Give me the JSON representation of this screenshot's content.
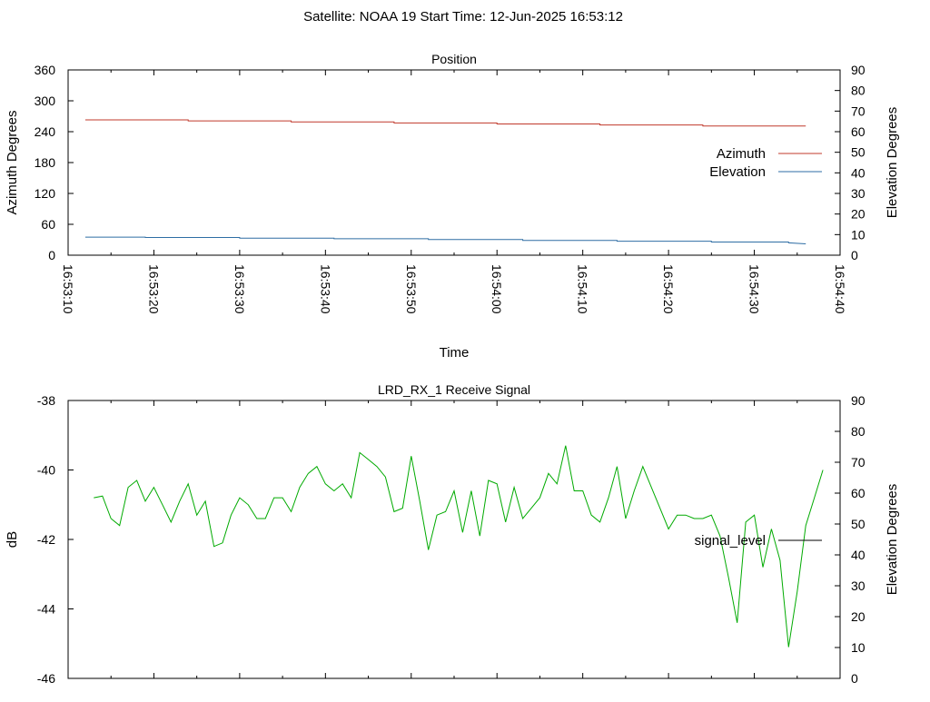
{
  "header": {
    "title": "Satellite: NOAA 19    Start Time: 12-Jun-2025 16:53:12"
  },
  "chart_data": [
    {
      "type": "line",
      "title": "Position",
      "xlabel": "Time",
      "ylabel": "Azimuth Degrees",
      "y2label": "Elevation Degrees",
      "xlim_seconds": [
        0,
        90
      ],
      "x_tick_labels": [
        "16:53:10",
        "16:53:20",
        "16:53:30",
        "16:53:40",
        "16:53:50",
        "16:54:00",
        "16:54:10",
        "16:54:20",
        "16:54:30",
        "16:54:40"
      ],
      "ylim": [
        0,
        360
      ],
      "yticks": [
        0,
        60,
        120,
        180,
        240,
        300,
        360
      ],
      "y2lim": [
        0,
        90
      ],
      "y2ticks": [
        0,
        10,
        20,
        30,
        40,
        50,
        60,
        70,
        80,
        90
      ],
      "legend_position": "right",
      "series": [
        {
          "name": "Azimuth",
          "axis": "left",
          "color": "#c0392b",
          "x": [
            2,
            14,
            14,
            26,
            26,
            38,
            38,
            50,
            50,
            62,
            62,
            74,
            74,
            86,
            86
          ],
          "values": [
            263,
            263,
            261,
            261,
            259,
            259,
            257,
            257,
            255,
            255,
            253,
            253,
            251,
            251,
            251
          ]
        },
        {
          "name": "Elevation",
          "axis": "right",
          "color": "#2e6da4",
          "x": [
            2,
            9,
            9,
            20,
            20,
            31,
            31,
            42,
            42,
            53,
            53,
            64,
            64,
            75,
            75,
            84,
            84,
            86
          ],
          "values": [
            8.8,
            8.8,
            8.6,
            8.6,
            8.3,
            8.3,
            8.0,
            8.0,
            7.6,
            7.6,
            7.2,
            7.2,
            6.8,
            6.8,
            6.4,
            6.4,
            6.0,
            5.5
          ]
        }
      ]
    },
    {
      "type": "line",
      "title": "LRD_RX_1 Receive Signal",
      "ylabel": "dB",
      "y2label": "Elevation Degrees",
      "xlim_seconds": [
        0,
        90
      ],
      "ylim": [
        -46,
        -38
      ],
      "yticks": [
        -46,
        -44,
        -42,
        -40,
        -38
      ],
      "y2lim": [
        0,
        90
      ],
      "y2ticks": [
        0,
        10,
        20,
        30,
        40,
        50,
        60,
        70,
        80,
        90
      ],
      "legend_position": "right",
      "series": [
        {
          "name": "signal_level",
          "axis": "left",
          "color": "#00aa00",
          "x": [
            3.0,
            4.0,
            5.0,
            6.0,
            7.0,
            8.0,
            9.0,
            10.0,
            11.0,
            12.0,
            13.0,
            14.0,
            15.0,
            16.0,
            17.0,
            18.0,
            19.0,
            20.0,
            21.0,
            22.0,
            23.0,
            24.0,
            25.0,
            26.0,
            27.0,
            28.0,
            29.0,
            30.0,
            31.0,
            32.0,
            33.0,
            34.0,
            35.0,
            36.0,
            37.0,
            38.0,
            39.0,
            40.0,
            41.0,
            42.0,
            43.0,
            44.0,
            45.0,
            46.0,
            47.0,
            48.0,
            49.0,
            50.0,
            51.0,
            52.0,
            53.0,
            54.0,
            55.0,
            56.0,
            57.0,
            58.0,
            59.0,
            60.0,
            61.0,
            62.0,
            63.0,
            64.0,
            65.0,
            66.0,
            67.0,
            68.0,
            69.0,
            70.0,
            71.0,
            72.0,
            73.0,
            74.0,
            75.0,
            76.0,
            77.0,
            78.0,
            79.0,
            80.0,
            81.0,
            82.0,
            83.0,
            84.0,
            85.0,
            86.0,
            87.0,
            88.0
          ],
          "values": [
            -40.8,
            -40.75,
            -41.4,
            -41.6,
            -40.5,
            -40.3,
            -40.9,
            -40.5,
            -41.0,
            -41.5,
            -40.9,
            -40.4,
            -41.3,
            -40.9,
            -42.2,
            -42.1,
            -41.3,
            -40.8,
            -41.0,
            -41.4,
            -41.4,
            -40.8,
            -40.8,
            -41.2,
            -40.5,
            -40.1,
            -39.9,
            -40.4,
            -40.6,
            -40.4,
            -40.8,
            -39.5,
            -39.7,
            -39.9,
            -40.2,
            -41.2,
            -41.1,
            -39.6,
            -40.9,
            -42.3,
            -41.3,
            -41.2,
            -40.6,
            -41.8,
            -40.6,
            -41.9,
            -40.3,
            -40.4,
            -41.5,
            -40.5,
            -41.4,
            -41.1,
            -40.8,
            -40.1,
            -40.4,
            -39.3,
            -40.6,
            -40.6,
            -41.3,
            -41.5,
            -40.8,
            -39.9,
            -41.4,
            -40.6,
            -39.9,
            -40.5,
            -41.1,
            -41.7,
            -41.3,
            -41.3,
            -41.4,
            -41.4,
            -41.3,
            -41.9,
            -43.1,
            -44.4,
            -41.5,
            -41.3,
            -42.8,
            -41.7,
            -42.6,
            -45.1,
            -43.5,
            -41.6,
            -40.8,
            -40.0
          ]
        }
      ]
    }
  ]
}
